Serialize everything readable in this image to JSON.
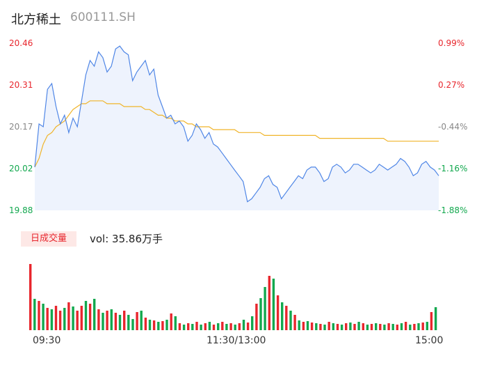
{
  "header": {
    "name": "北方稀土",
    "code": "600111.SH"
  },
  "colors": {
    "price_line": "#4f86e6",
    "avg_line": "#f0b429",
    "up": "#e8262d",
    "down": "#12a84e",
    "area": "#eef3fd"
  },
  "volume_panel": {
    "badge": "日成交量",
    "vol_label": "vol: 35.86万手"
  },
  "chart_data": {
    "type": "line",
    "title": "",
    "y_left_ticks": [
      "20.46",
      "20.31",
      "20.17",
      "20.02",
      "19.88"
    ],
    "y_right_ticks": [
      "0.99%",
      "0.27%",
      "-0.44%",
      "-1.16%",
      "-1.88%"
    ],
    "x_ticks": [
      "09:30",
      "11:30/13:00",
      "15:00"
    ],
    "ylim": [
      19.88,
      20.46
    ],
    "series": [
      {
        "values": [
          20.03,
          20.18,
          20.17,
          20.3,
          20.32,
          20.24,
          20.18,
          20.21,
          20.15,
          20.2,
          20.17,
          20.26,
          20.35,
          20.4,
          20.38,
          20.43,
          20.41,
          20.36,
          20.38,
          20.44,
          20.45,
          20.43,
          20.42,
          20.33,
          20.36,
          20.38,
          20.4,
          20.35,
          20.37,
          20.28,
          20.24,
          20.2,
          20.21,
          20.18,
          20.19,
          20.17,
          20.12,
          20.14,
          20.18,
          20.16,
          20.13,
          20.15,
          20.11,
          20.1,
          20.08,
          20.06,
          20.04,
          20.02,
          20.0,
          19.98,
          19.91,
          19.92,
          19.94,
          19.96,
          19.99,
          20.0,
          19.97,
          19.96,
          19.92,
          19.94,
          19.96,
          19.98,
          20.0,
          19.99,
          20.02,
          20.03,
          20.03,
          20.01,
          19.98,
          19.99,
          20.03,
          20.04,
          20.03,
          20.01,
          20.02,
          20.04,
          20.04,
          20.03,
          20.02,
          20.01,
          20.02,
          20.04,
          20.03,
          20.02,
          20.03,
          20.04,
          20.06,
          20.05,
          20.03,
          20.0,
          20.01,
          20.04,
          20.05,
          20.03,
          20.02,
          20.0
        ]
      },
      {
        "values": [
          20.03,
          20.06,
          20.11,
          20.14,
          20.15,
          20.17,
          20.18,
          20.19,
          20.21,
          20.23,
          20.24,
          20.25,
          20.25,
          20.26,
          20.26,
          20.26,
          20.26,
          20.25,
          20.25,
          20.25,
          20.25,
          20.24,
          20.24,
          20.24,
          20.24,
          20.24,
          20.23,
          20.23,
          20.22,
          20.21,
          20.21,
          20.2,
          20.2,
          20.19,
          20.19,
          20.19,
          20.18,
          20.18,
          20.17,
          20.17,
          20.17,
          20.17,
          20.16,
          20.16,
          20.16,
          20.16,
          20.16,
          20.16,
          20.15,
          20.15,
          20.15,
          20.15,
          20.15,
          20.15,
          20.14,
          20.14,
          20.14,
          20.14,
          20.14,
          20.14,
          20.14,
          20.14,
          20.14,
          20.14,
          20.14,
          20.14,
          20.14,
          20.13,
          20.13,
          20.13,
          20.13,
          20.13,
          20.13,
          20.13,
          20.13,
          20.13,
          20.13,
          20.13,
          20.13,
          20.13,
          20.13,
          20.13,
          20.13,
          20.12,
          20.12,
          20.12,
          20.12,
          20.12,
          20.12,
          20.12,
          20.12,
          20.12,
          20.12,
          20.12,
          20.12,
          20.12
        ]
      }
    ],
    "volume": [
      95,
      45,
      42,
      38,
      32,
      30,
      35,
      28,
      32,
      40,
      34,
      28,
      35,
      42,
      38,
      45,
      30,
      25,
      28,
      30,
      25,
      22,
      28,
      22,
      16,
      26,
      28,
      18,
      15,
      14,
      12,
      13,
      15,
      24,
      20,
      10,
      8,
      10,
      9,
      12,
      8,
      10,
      12,
      8,
      10,
      12,
      9,
      10,
      8,
      10,
      15,
      11,
      20,
      38,
      46,
      62,
      78,
      74,
      50,
      40,
      35,
      28,
      22,
      14,
      12,
      13,
      11,
      10,
      9,
      8,
      12,
      10,
      9,
      8,
      10,
      11,
      9,
      12,
      10,
      8,
      9,
      10,
      9,
      8,
      10,
      9,
      8,
      10,
      12,
      8,
      9,
      10,
      11,
      12,
      26,
      33
    ],
    "volume_up": [
      true,
      false,
      true,
      false,
      true,
      false,
      true,
      true,
      false,
      true,
      false,
      true,
      true,
      false,
      true,
      false,
      true,
      false,
      true,
      false,
      true,
      false,
      true,
      false,
      false,
      true,
      false,
      true,
      false,
      true,
      false,
      true,
      false,
      true,
      false,
      true,
      false,
      true,
      false,
      true,
      false,
      true,
      false,
      true,
      false,
      true,
      false,
      true,
      false,
      true,
      false,
      true,
      false,
      true,
      false,
      false,
      true,
      false,
      true,
      false,
      true,
      false,
      true,
      false,
      true,
      false,
      true,
      false,
      true,
      false,
      true,
      false,
      true,
      false,
      true,
      false,
      true,
      false,
      true,
      false,
      true,
      false,
      true,
      false,
      true,
      false,
      true,
      false,
      true,
      false,
      true,
      false,
      true,
      false,
      true,
      false
    ]
  }
}
